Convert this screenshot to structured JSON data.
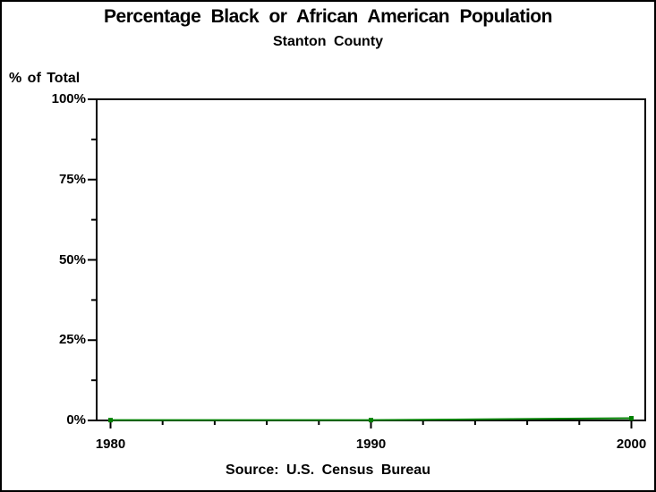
{
  "chart_data": {
    "type": "line",
    "title": "Percentage Black or African American Population",
    "subtitle": "Stanton County",
    "ylabel": "% of Total",
    "footnote": "Source: U.S. Census Bureau",
    "x": [
      1980,
      1990,
      2000
    ],
    "values": [
      0.1,
      0.1,
      0.7
    ],
    "xlim": [
      1980,
      2000
    ],
    "ylim": [
      0,
      100
    ],
    "grid": "off",
    "legend": "none",
    "line_color": "#008000",
    "marker": "filled-square",
    "y_axis": {
      "tick_labels": [
        "100%",
        "75%",
        "50%",
        "25%",
        "0%"
      ],
      "tick_values": [
        100,
        75,
        50,
        25,
        0
      ],
      "minor_tick_values": [
        87.5,
        62.5,
        37.5,
        12.5
      ]
    },
    "x_axis": {
      "tick_labels": [
        "1980",
        "1990",
        "2000"
      ],
      "tick_values": [
        1980,
        1990,
        2000
      ],
      "minor_tick_values": [
        1982,
        1984,
        1986,
        1988,
        1992,
        1994,
        1996,
        1998
      ]
    }
  },
  "colors": {
    "background": "#ffffff",
    "frame": "#000000",
    "text": "#000000",
    "line": "#008000"
  }
}
